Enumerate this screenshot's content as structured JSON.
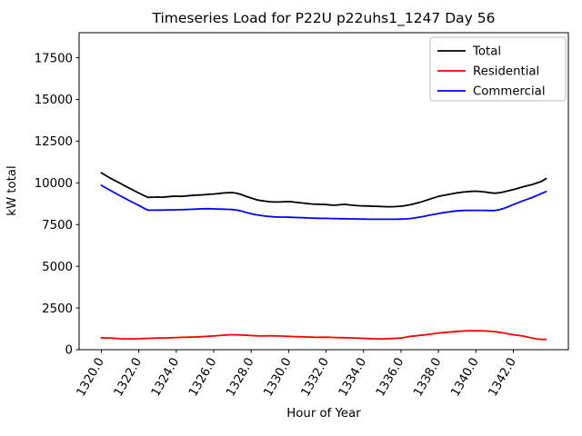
{
  "chart_data": {
    "type": "line",
    "title": "Timeseries Load for P22U p22uhs1_1247  Day 56",
    "xlabel": "Hour of Year",
    "ylabel": "kW total",
    "xlim": [
      1318.8125,
      1344.9375
    ],
    "ylim": [
      0,
      19000
    ],
    "grid": false,
    "legend_position": "upper right",
    "legend_entries": [
      "Total",
      "Residential",
      "Commercial"
    ],
    "xticks": {
      "values": [
        1320,
        1322,
        1324,
        1326,
        1328,
        1330,
        1332,
        1334,
        1336,
        1338,
        1340,
        1342
      ],
      "labels": [
        "1320.0",
        "1322.0",
        "1324.0",
        "1326.0",
        "1328.0",
        "1330.0",
        "1332.0",
        "1334.0",
        "1336.0",
        "1338.0",
        "1340.0",
        "1342.0"
      ]
    },
    "yticks": {
      "values": [
        0,
        2500,
        5000,
        7500,
        10000,
        12500,
        15000,
        17500
      ],
      "labels": [
        "0",
        "2500",
        "5000",
        "7500",
        "10000",
        "12500",
        "15000",
        "17500"
      ]
    },
    "x": [
      1320,
      1320.25,
      1320.5,
      1320.75,
      1321,
      1321.25,
      1321.5,
      1321.75,
      1322,
      1322.25,
      1322.5,
      1322.75,
      1323,
      1323.25,
      1323.5,
      1323.75,
      1324,
      1324.25,
      1324.5,
      1324.75,
      1325,
      1325.25,
      1325.5,
      1325.75,
      1326,
      1326.25,
      1326.5,
      1326.75,
      1327,
      1327.25,
      1327.5,
      1327.75,
      1328,
      1328.25,
      1328.5,
      1328.75,
      1329,
      1329.25,
      1329.5,
      1329.75,
      1330,
      1330.25,
      1330.5,
      1330.75,
      1331,
      1331.25,
      1331.5,
      1331.75,
      1332,
      1332.25,
      1332.5,
      1332.75,
      1333,
      1333.25,
      1333.5,
      1333.75,
      1334,
      1334.25,
      1334.5,
      1334.75,
      1335,
      1335.25,
      1335.5,
      1335.75,
      1336,
      1336.25,
      1336.5,
      1336.75,
      1337,
      1337.25,
      1337.5,
      1337.75,
      1338,
      1338.25,
      1338.5,
      1338.75,
      1339,
      1339.25,
      1339.5,
      1339.75,
      1340,
      1340.25,
      1340.5,
      1340.75,
      1341,
      1341.25,
      1341.5,
      1341.75,
      1342,
      1342.25,
      1342.5,
      1342.75,
      1343,
      1343.25,
      1343.5,
      1343.75
    ],
    "series": [
      {
        "name": "Total",
        "color": "#000000",
        "values": [
          10600,
          10430,
          10270,
          10120,
          9980,
          9820,
          9680,
          9530,
          9390,
          9250,
          9130,
          9140,
          9150,
          9140,
          9160,
          9190,
          9200,
          9190,
          9210,
          9240,
          9260,
          9270,
          9290,
          9320,
          9330,
          9360,
          9390,
          9410,
          9420,
          9370,
          9290,
          9180,
          9090,
          9000,
          8940,
          8900,
          8870,
          8850,
          8850,
          8870,
          8880,
          8850,
          8820,
          8790,
          8760,
          8730,
          8720,
          8710,
          8700,
          8670,
          8660,
          8690,
          8710,
          8680,
          8650,
          8630,
          8620,
          8610,
          8600,
          8590,
          8580,
          8570,
          8570,
          8580,
          8600,
          8640,
          8690,
          8760,
          8830,
          8920,
          9010,
          9100,
          9190,
          9250,
          9300,
          9350,
          9400,
          9440,
          9470,
          9490,
          9500,
          9480,
          9450,
          9410,
          9380,
          9410,
          9460,
          9530,
          9600,
          9680,
          9760,
          9830,
          9900,
          9990,
          10090,
          10250
        ]
      },
      {
        "name": "Residential",
        "color": "#ff0000",
        "values": [
          720,
          710,
          700,
          680,
          660,
          650,
          650,
          655,
          660,
          670,
          680,
          690,
          700,
          705,
          710,
          720,
          730,
          740,
          745,
          750,
          760,
          775,
          790,
          805,
          820,
          845,
          870,
          885,
          900,
          890,
          880,
          865,
          850,
          835,
          820,
          830,
          840,
          830,
          820,
          810,
          800,
          790,
          780,
          770,
          760,
          750,
          740,
          745,
          750,
          740,
          730,
          725,
          720,
          710,
          700,
          690,
          680,
          670,
          660,
          655,
          650,
          660,
          670,
          685,
          700,
          750,
          800,
          830,
          860,
          890,
          920,
          960,
          1000,
          1025,
          1050,
          1075,
          1100,
          1115,
          1130,
          1135,
          1140,
          1130,
          1120,
          1105,
          1090,
          1045,
          1000,
          950,
          900,
          860,
          820,
          760,
          700,
          650,
          620,
          620
        ]
      },
      {
        "name": "Commercial",
        "color": "#0000ff",
        "values": [
          9850,
          9690,
          9530,
          9380,
          9230,
          9080,
          8930,
          8790,
          8650,
          8500,
          8360,
          8360,
          8370,
          8370,
          8380,
          8380,
          8390,
          8390,
          8400,
          8410,
          8420,
          8440,
          8450,
          8450,
          8440,
          8430,
          8420,
          8410,
          8400,
          8360,
          8300,
          8220,
          8150,
          8090,
          8050,
          8010,
          7980,
          7960,
          7950,
          7950,
          7940,
          7930,
          7920,
          7910,
          7900,
          7890,
          7880,
          7870,
          7870,
          7860,
          7860,
          7850,
          7850,
          7840,
          7840,
          7830,
          7830,
          7820,
          7820,
          7820,
          7820,
          7820,
          7820,
          7820,
          7830,
          7840,
          7860,
          7900,
          7950,
          8000,
          8060,
          8110,
          8160,
          8210,
          8250,
          8290,
          8320,
          8340,
          8350,
          8350,
          8350,
          8350,
          8350,
          8340,
          8340,
          8390,
          8470,
          8580,
          8700,
          8810,
          8920,
          9020,
          9120,
          9240,
          9360,
          9480
        ]
      }
    ]
  }
}
